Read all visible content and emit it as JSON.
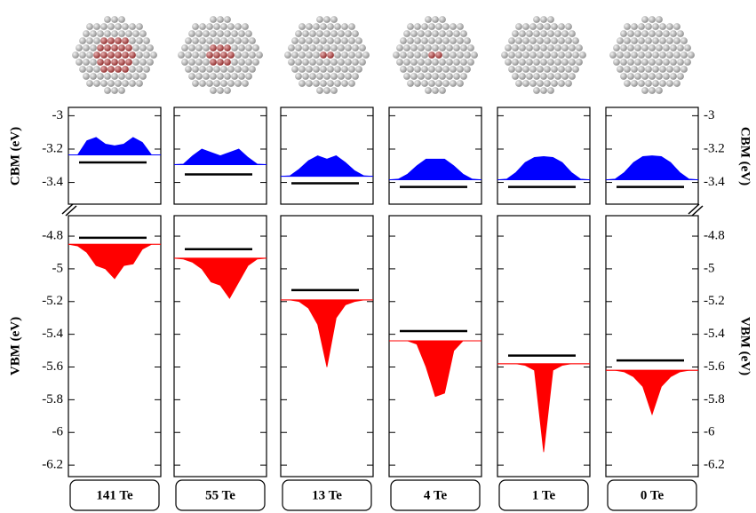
{
  "chart_data": {
    "type": "band-panels",
    "cbm": {
      "label": "CBM (eV)",
      "ylim": [
        -3.53,
        -2.95
      ],
      "yticks": [
        -3,
        -3.2,
        -3.4
      ],
      "color": "#0000ff"
    },
    "vbm": {
      "label": "VBM (eV)",
      "ylim": [
        -6.27,
        -4.675
      ],
      "yticks": [
        -4.8,
        -5,
        -5.2,
        -5.4,
        -5.6,
        -5.8,
        -6,
        -6.2
      ],
      "color": "#ff0000"
    },
    "level_color": "#000000",
    "panels": [
      {
        "label": "141 Te",
        "cbm_level": -3.28,
        "cbm_edge": -3.235,
        "cbm_dos": [
          -3.235,
          -3.235,
          -3.15,
          -3.13,
          -3.17,
          -3.18,
          -3.17,
          -3.13,
          -3.16,
          -3.235,
          -3.235
        ],
        "vbm_level": -4.81,
        "vbm_edge": -4.85,
        "vbm_dos": [
          -4.85,
          -4.86,
          -4.9,
          -4.98,
          -5.0,
          -5.06,
          -4.98,
          -4.97,
          -4.88,
          -4.85,
          -4.85
        ]
      },
      {
        "label": "55 Te",
        "cbm_level": -3.352,
        "cbm_edge": -3.293,
        "cbm_dos": [
          -3.293,
          -3.29,
          -3.24,
          -3.2,
          -3.22,
          -3.24,
          -3.22,
          -3.2,
          -3.25,
          -3.29,
          -3.293
        ],
        "vbm_level": -4.88,
        "vbm_edge": -4.935,
        "vbm_dos": [
          -4.935,
          -4.94,
          -4.96,
          -5.0,
          -5.08,
          -5.1,
          -5.18,
          -5.08,
          -4.98,
          -4.94,
          -4.935
        ]
      },
      {
        "label": "13 Te",
        "cbm_level": -3.405,
        "cbm_edge": -3.363,
        "cbm_dos": [
          -3.363,
          -3.36,
          -3.32,
          -3.27,
          -3.24,
          -3.26,
          -3.24,
          -3.28,
          -3.33,
          -3.36,
          -3.363
        ],
        "vbm_level": -5.13,
        "vbm_edge": -5.19,
        "vbm_dos": [
          -5.19,
          -5.19,
          -5.2,
          -5.24,
          -5.34,
          -5.6,
          -5.3,
          -5.22,
          -5.2,
          -5.19,
          -5.19
        ]
      },
      {
        "label": "4 Te",
        "cbm_level": -3.427,
        "cbm_edge": -3.384,
        "cbm_dos": [
          -3.384,
          -3.38,
          -3.35,
          -3.3,
          -3.26,
          -3.26,
          -3.26,
          -3.3,
          -3.35,
          -3.38,
          -3.384
        ],
        "vbm_level": -5.38,
        "vbm_edge": -5.44,
        "vbm_dos": [
          -5.44,
          -5.44,
          -5.44,
          -5.46,
          -5.6,
          -5.78,
          -5.76,
          -5.5,
          -5.44,
          -5.44,
          -5.44
        ]
      },
      {
        "label": "1 Te",
        "cbm_level": -3.427,
        "cbm_edge": -3.384,
        "cbm_dos": [
          -3.384,
          -3.38,
          -3.34,
          -3.28,
          -3.25,
          -3.245,
          -3.25,
          -3.28,
          -3.34,
          -3.38,
          -3.384
        ],
        "vbm_level": -5.53,
        "vbm_edge": -5.58,
        "vbm_dos": [
          -5.58,
          -5.58,
          -5.58,
          -5.59,
          -5.62,
          -6.12,
          -5.62,
          -5.59,
          -5.58,
          -5.58,
          -5.58
        ]
      },
      {
        "label": "0 Te",
        "cbm_level": -3.427,
        "cbm_edge": -3.384,
        "cbm_dos": [
          -3.384,
          -3.38,
          -3.34,
          -3.28,
          -3.245,
          -3.24,
          -3.245,
          -3.28,
          -3.34,
          -3.38,
          -3.384
        ],
        "vbm_level": -5.56,
        "vbm_edge": -5.62,
        "vbm_dos": [
          -5.62,
          -5.62,
          -5.63,
          -5.66,
          -5.72,
          -5.89,
          -5.72,
          -5.66,
          -5.63,
          -5.62,
          -5.62
        ]
      }
    ]
  }
}
